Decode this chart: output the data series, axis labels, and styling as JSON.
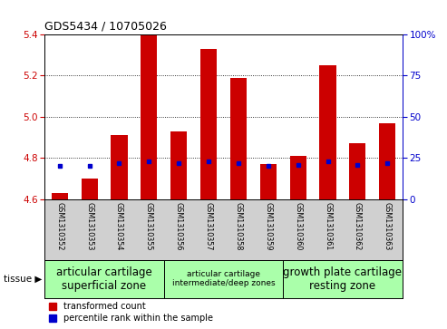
{
  "title": "GDS5434 / 10705026",
  "samples": [
    "GSM1310352",
    "GSM1310353",
    "GSM1310354",
    "GSM1310355",
    "GSM1310356",
    "GSM1310357",
    "GSM1310358",
    "GSM1310359",
    "GSM1310360",
    "GSM1310361",
    "GSM1310362",
    "GSM1310363"
  ],
  "red_values": [
    4.63,
    4.7,
    4.91,
    5.4,
    4.93,
    5.33,
    5.19,
    4.77,
    4.81,
    5.25,
    4.87,
    4.97
  ],
  "blue_percentiles": [
    20,
    20,
    22,
    23,
    22,
    23,
    22,
    20,
    21,
    23,
    21,
    22
  ],
  "ylim_left": [
    4.6,
    5.4
  ],
  "ylim_right": [
    0,
    100
  ],
  "yticks_left": [
    4.6,
    4.8,
    5.0,
    5.2,
    5.4
  ],
  "yticks_right": [
    0,
    25,
    50,
    75,
    100
  ],
  "bar_bottom": 4.6,
  "bar_color": "#cc0000",
  "blue_color": "#0000cc",
  "grid_color": "#000000",
  "tissue_groups": [
    {
      "label": "articular cartilage\nsuperficial zone",
      "start": 0,
      "end": 4,
      "color": "#aaffaa",
      "fontsize": 8.5
    },
    {
      "label": "articular cartilage\nintermediate/deep zones",
      "start": 4,
      "end": 8,
      "color": "#aaffaa",
      "fontsize": 6.5
    },
    {
      "label": "growth plate cartilage\nresting zone",
      "start": 8,
      "end": 12,
      "color": "#aaffaa",
      "fontsize": 8.5
    }
  ],
  "legend_red_label": "transformed count",
  "legend_blue_label": "percentile rank within the sample",
  "tissue_label": "tissue",
  "bg_color": "#d0d0d0",
  "plot_bg": "#ffffff",
  "bar_width": 0.55
}
